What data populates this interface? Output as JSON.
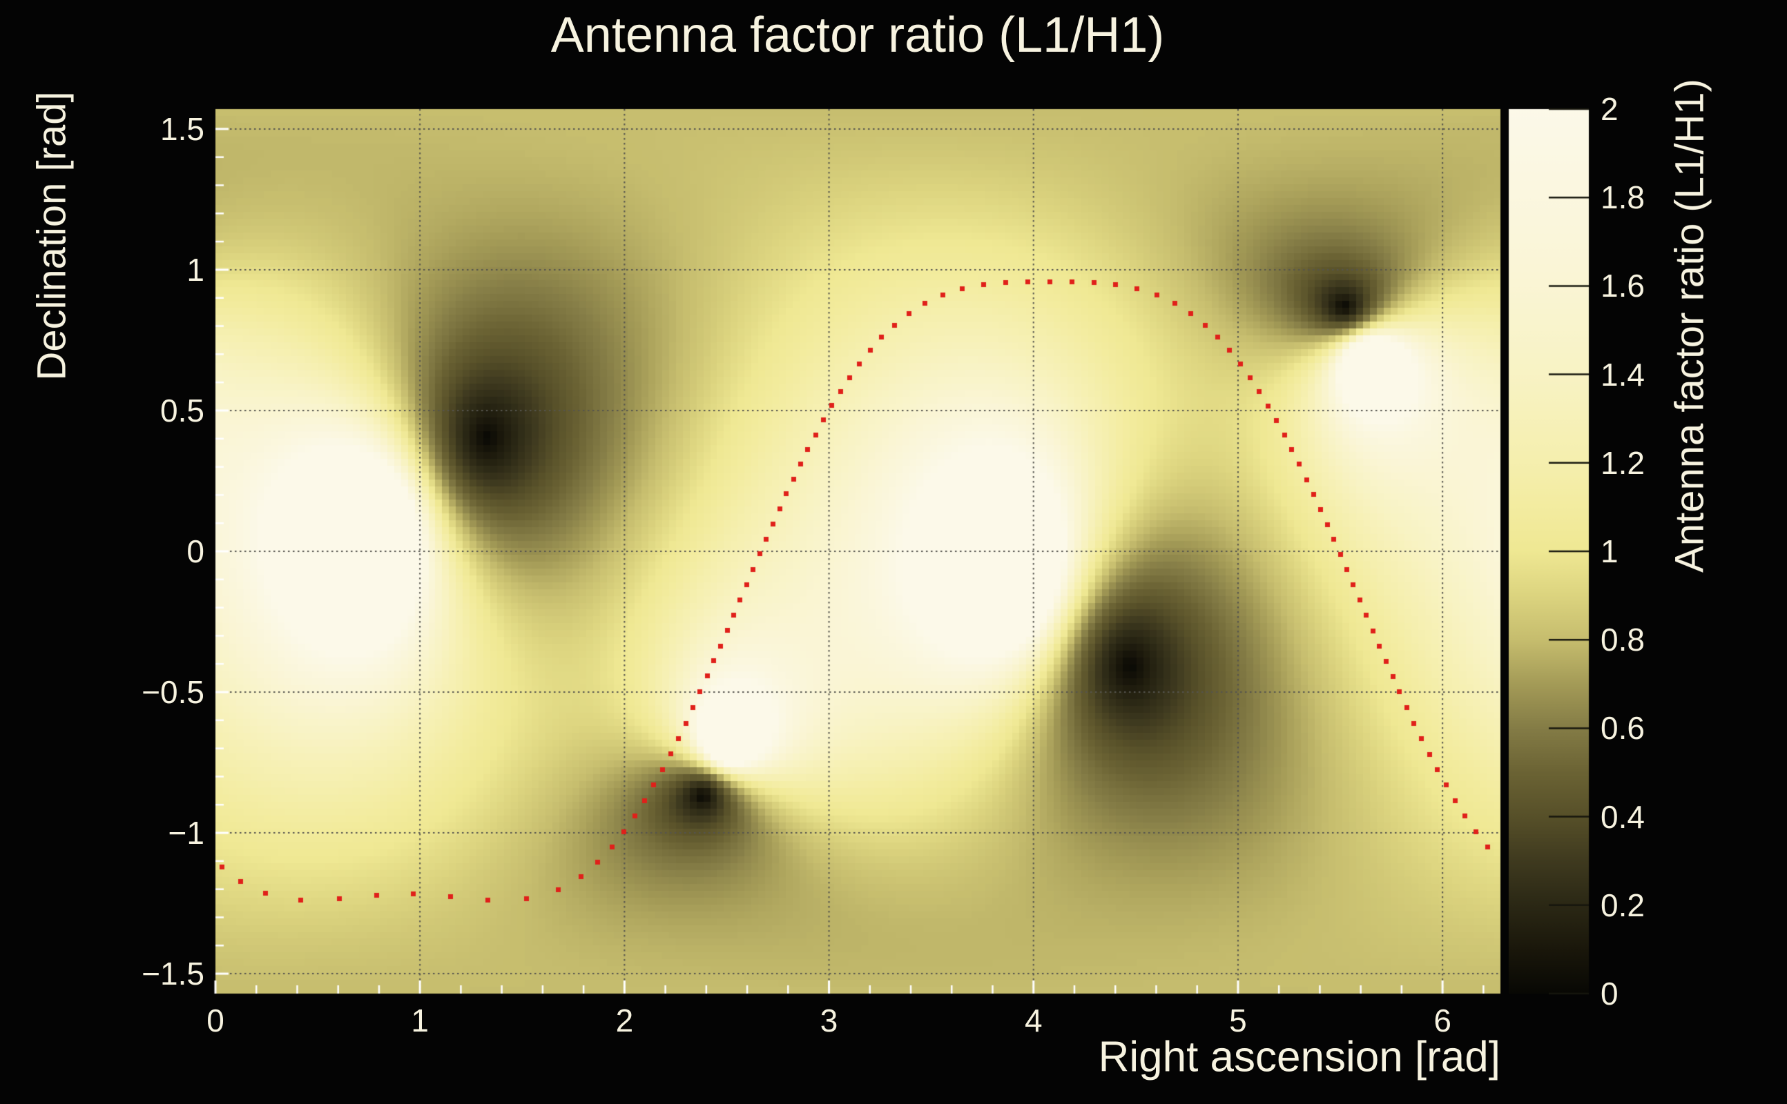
{
  "title": {
    "text": "Antenna factor ratio (L1/H1)"
  },
  "x_axis": {
    "title": "Right ascension [rad]",
    "min": 0,
    "max": 6.283185,
    "major_ticks": [
      0,
      1,
      2,
      3,
      4,
      5,
      6
    ],
    "tick_labels": [
      "0",
      "1",
      "2",
      "3",
      "4",
      "5",
      "6"
    ],
    "minor_step": 0.2
  },
  "y_axis": {
    "title": "Declination [rad]",
    "min": -1.570796,
    "max": 1.570796,
    "major_ticks": [
      1.5,
      1,
      0.5,
      0,
      -0.5,
      -1,
      -1.5
    ],
    "tick_labels": [
      "1.5",
      "1",
      "0.5",
      "0",
      "−0.5",
      "−1",
      "−1.5"
    ],
    "minor_step": 0.1
  },
  "colorbar": {
    "title": "Antenna factor ratio (L1/H1)",
    "min": 0,
    "max": 2,
    "ticks": [
      0,
      0.2,
      0.4,
      0.6,
      0.8,
      1,
      1.2,
      1.4,
      1.6,
      1.8,
      2
    ],
    "tick_labels": [
      "0",
      "0.2",
      "0.4",
      "0.6",
      "0.8",
      "1",
      "1.2",
      "1.4",
      "1.6",
      "1.8",
      "2"
    ]
  },
  "palette": [
    [
      0.0,
      "#080804"
    ],
    [
      0.1,
      "#1a170b"
    ],
    [
      0.2,
      "#2b2815"
    ],
    [
      0.3,
      "#3f3a1f"
    ],
    [
      0.4,
      "#575029"
    ],
    [
      0.5,
      "#6b6334"
    ],
    [
      0.6,
      "#847c46"
    ],
    [
      0.7,
      "#a49b57"
    ],
    [
      0.8,
      "#c6bd6e"
    ],
    [
      0.9,
      "#dcd47f"
    ],
    [
      1.0,
      "#efe893"
    ],
    [
      1.1,
      "#f3eca0"
    ],
    [
      1.2,
      "#f5efae"
    ],
    [
      1.3,
      "#f7f1b9"
    ],
    [
      1.4,
      "#f8f3c4"
    ],
    [
      1.5,
      "#f9f4cc"
    ],
    [
      1.6,
      "#faf5d4"
    ],
    [
      1.7,
      "#faf6da"
    ],
    [
      1.8,
      "#fbf7df"
    ],
    [
      1.9,
      "#fbf8e4"
    ],
    [
      2.0,
      "#fcf9e9"
    ]
  ],
  "colors": {
    "background": "#040404",
    "text": "#f7f3e0",
    "tick": "#ffffff",
    "grid": "#55544e",
    "colorbar_tick": "#16160d"
  },
  "chart_data": {
    "type": "heatmap",
    "title": "Antenna factor ratio (L1/H1)",
    "xlabel": "Right ascension [rad]",
    "ylabel": "Declination [rad]",
    "zlabel": "Antenna factor ratio (L1/H1)",
    "x_range": [
      0,
      6.283185
    ],
    "y_range": [
      -1.570796,
      1.570796
    ],
    "z_range": [
      0,
      2
    ],
    "grid": true,
    "bins": {
      "nx": 187,
      "ny": 129
    },
    "model": "ratio(ra,dec) = scale * prod_i sin(theta_L1null_i/2) / prod_i sin(theta_H1null_i/2), theta = great-circle angle, clamped to z_range",
    "scale": 1.05,
    "l1_nulls_dark_spots": [
      [
        1.33,
        0.405
      ],
      [
        4.47,
        -0.41
      ],
      [
        5.52,
        0.87
      ],
      [
        2.38,
        -0.87
      ]
    ],
    "h1_nulls_bright_spots": [
      [
        0.76,
        0.07
      ],
      [
        3.9,
        -0.07
      ],
      [
        5.64,
        0.68
      ],
      [
        2.5,
        -0.68
      ]
    ],
    "track": {
      "name": "source sky track (red dotted curve)",
      "marker": "square",
      "marker_color": "#e0201a",
      "marker_size": 7,
      "spacing_rad": 0.0625,
      "dec_model": {
        "center_ra": 4.08,
        "a0": -0.1988,
        "cos1": 1.2408,
        "cos2": 0.069,
        "cos3": -0.1535
      },
      "max_point": [
        4.06,
        0.957
      ],
      "min_point": [
        0.94,
        -1.217
      ],
      "dec_at_ra0": -1.06,
      "zero_crossings_ra": [
        2.66,
        5.48
      ]
    }
  }
}
